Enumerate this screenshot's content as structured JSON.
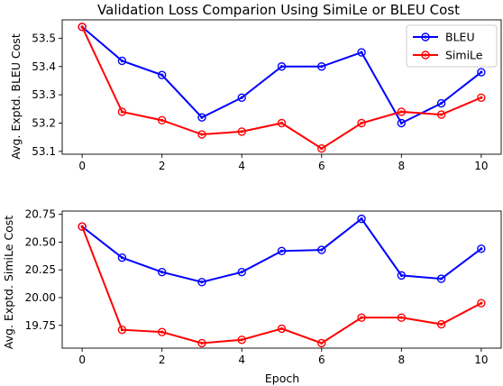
{
  "chart_data": [
    {
      "type": "line",
      "title": "Validation Loss Comparion Using SimiLe or BLEU Cost",
      "xlabel": "",
      "ylabel": "Avg. Exptd. BLEU Cost",
      "xlim": [
        -0.5,
        10.5
      ],
      "ylim": [
        53.09,
        53.565
      ],
      "xticks": [
        0,
        2,
        4,
        6,
        8,
        10
      ],
      "yticks": [
        53.1,
        53.2,
        53.3,
        53.4,
        53.5
      ],
      "x": [
        0,
        1,
        2,
        3,
        4,
        5,
        6,
        7,
        8,
        9,
        10
      ],
      "series": [
        {
          "name": "BLEU",
          "color": "#0000ff",
          "values": [
            53.54,
            53.42,
            53.37,
            53.22,
            53.29,
            53.4,
            53.4,
            53.45,
            53.2,
            53.27,
            53.38
          ]
        },
        {
          "name": "SimiLe",
          "color": "#ff0000",
          "values": [
            53.54,
            53.24,
            53.21,
            53.16,
            53.17,
            53.2,
            53.11,
            53.2,
            53.24,
            53.23,
            53.29
          ]
        }
      ],
      "legend": "top-right",
      "grid": false
    },
    {
      "type": "line",
      "title": "",
      "xlabel": "Epoch",
      "ylabel": "Avg. Exptd. SimiLe Cost",
      "xlim": [
        -0.5,
        10.5
      ],
      "ylim": [
        19.545,
        20.78
      ],
      "xticks": [
        0,
        2,
        4,
        6,
        8,
        10
      ],
      "yticks": [
        19.75,
        20.0,
        20.25,
        20.5,
        20.75
      ],
      "x": [
        0,
        1,
        2,
        3,
        4,
        5,
        6,
        7,
        8,
        9,
        10
      ],
      "series": [
        {
          "color": "#0000ff",
          "values": [
            20.64,
            20.36,
            20.23,
            20.14,
            20.23,
            20.42,
            20.43,
            20.71,
            20.2,
            20.17,
            20.44
          ]
        },
        {
          "color": "#ff0000",
          "values": [
            20.64,
            19.71,
            19.69,
            19.59,
            19.62,
            19.72,
            19.59,
            19.82,
            19.82,
            19.76,
            19.95
          ]
        }
      ],
      "legend": "none",
      "grid": false
    }
  ]
}
